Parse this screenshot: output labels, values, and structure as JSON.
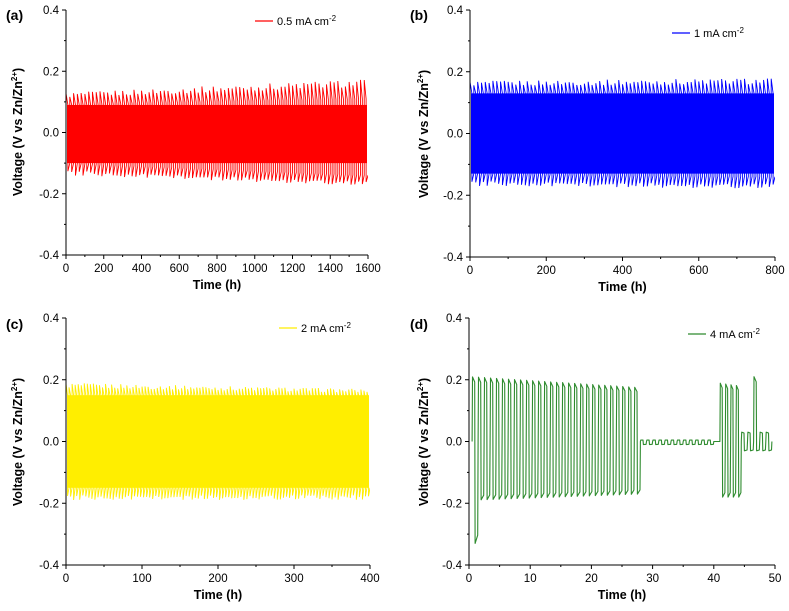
{
  "chart_data": [
    {
      "type": "line",
      "panel_label": "(a)",
      "xlabel": "Time (h)",
      "ylabel": "Voltage (V vs Zn/Zn",
      "ylabel_sup": "2+",
      "ylabel_end": ")",
      "xlim": [
        0,
        1600
      ],
      "ylim": [
        -0.4,
        0.4
      ],
      "xticks": [
        "0",
        "200",
        "400",
        "600",
        "800",
        "1000",
        "1200",
        "1400",
        "1600"
      ],
      "yticks": [
        "-0.4",
        "-0.2",
        "0.0",
        "0.2",
        "0.4"
      ],
      "grid": false,
      "legend_position": "top-right",
      "series": [
        {
          "name": "0.5 mA cm",
          "name_sup": "-2",
          "color": "#ff0000",
          "pattern": "square-wave cycling",
          "cycle_period_h": 20,
          "x": [
            0,
            1600
          ],
          "upper_envelope": [
            0.13,
            0.175
          ],
          "lower_envelope": [
            -0.14,
            -0.175
          ],
          "inner_upper": [
            0.09,
            0.11
          ],
          "inner_lower": [
            -0.1,
            -0.14
          ]
        }
      ]
    },
    {
      "type": "line",
      "panel_label": "(b)",
      "xlabel": "Time (h)",
      "ylabel": "Voltage (V vs Zn/Zn",
      "ylabel_sup": "2+",
      "ylabel_end": ")",
      "xlim": [
        0,
        800
      ],
      "ylim": [
        -0.4,
        0.4
      ],
      "xticks": [
        "0",
        "200",
        "400",
        "600",
        "800"
      ],
      "yticks": [
        "-0.4",
        "-0.2",
        "0.0",
        "0.2",
        "0.4"
      ],
      "grid": false,
      "legend_position": "top-right",
      "series": [
        {
          "name": "1 mA cm",
          "name_sup": "-2",
          "color": "#0000ff",
          "pattern": "square-wave cycling",
          "cycle_period_h": 10,
          "x": [
            0,
            800
          ],
          "upper_envelope": [
            0.17,
            0.18
          ],
          "lower_envelope": [
            -0.17,
            -0.18
          ],
          "inner_upper": [
            0.13,
            0.13
          ],
          "inner_lower": [
            -0.13,
            -0.14
          ]
        }
      ]
    },
    {
      "type": "line",
      "panel_label": "(c)",
      "xlabel": "Time (h)",
      "ylabel": "Voltage (V vs Zn/Zn",
      "ylabel_sup": "2+",
      "ylabel_end": ")",
      "xlim": [
        0,
        400
      ],
      "ylim": [
        -0.4,
        0.4
      ],
      "xticks": [
        "0",
        "100",
        "200",
        "300",
        "400"
      ],
      "yticks": [
        "-0.4",
        "-0.2",
        "0.0",
        "0.2",
        "0.4"
      ],
      "grid": false,
      "legend_position": "top-right",
      "series": [
        {
          "name": "2 mA cm",
          "name_sup": "-2",
          "color": "#ffee00",
          "pattern": "square-wave cycling",
          "cycle_period_h": 4,
          "x": [
            0,
            400
          ],
          "upper_envelope": [
            0.19,
            0.17
          ],
          "lower_envelope": [
            -0.19,
            -0.19
          ],
          "inner_upper": [
            0.15,
            0.14
          ],
          "inner_lower": [
            -0.15,
            -0.15
          ]
        }
      ]
    },
    {
      "type": "line",
      "panel_label": "(d)",
      "xlabel": "Time (h)",
      "ylabel": "Voltage (V vs Zn/Zn",
      "ylabel_sup": "2+",
      "ylabel_end": ")",
      "xlim": [
        0,
        50
      ],
      "ylim": [
        -0.4,
        0.4
      ],
      "xticks": [
        "0",
        "10",
        "20",
        "30",
        "40",
        "50"
      ],
      "yticks": [
        "-0.4",
        "-0.2",
        "0.0",
        "0.2",
        "0.4"
      ],
      "grid": false,
      "legend_position": "top-right",
      "series": [
        {
          "name": "4 mA cm",
          "name_sup": "-2",
          "color": "#2e8b2e",
          "pattern": "square-wave cycling with short circuit after ~28 h",
          "cycle_period_h": 1,
          "segments": [
            {
              "x": [
                0.5,
                28
              ],
              "upper": [
                0.21,
                0.175
              ],
              "lower": [
                -0.19,
                -0.17
              ],
              "first_low": -0.33
            },
            {
              "x": [
                28,
                40
              ],
              "upper": [
                0.005,
                0.005
              ],
              "lower": [
                -0.01,
                -0.01
              ]
            },
            {
              "x": [
                41,
                44.5
              ],
              "upper": [
                0.19,
                0.18
              ],
              "lower": [
                -0.18,
                -0.18
              ]
            },
            {
              "x": [
                44.5,
                49.5
              ],
              "upper": [
                0.03,
                0.03
              ],
              "lower": [
                -0.03,
                -0.03
              ],
              "spike": [
                47,
                0.21
              ]
            }
          ]
        }
      ]
    }
  ]
}
